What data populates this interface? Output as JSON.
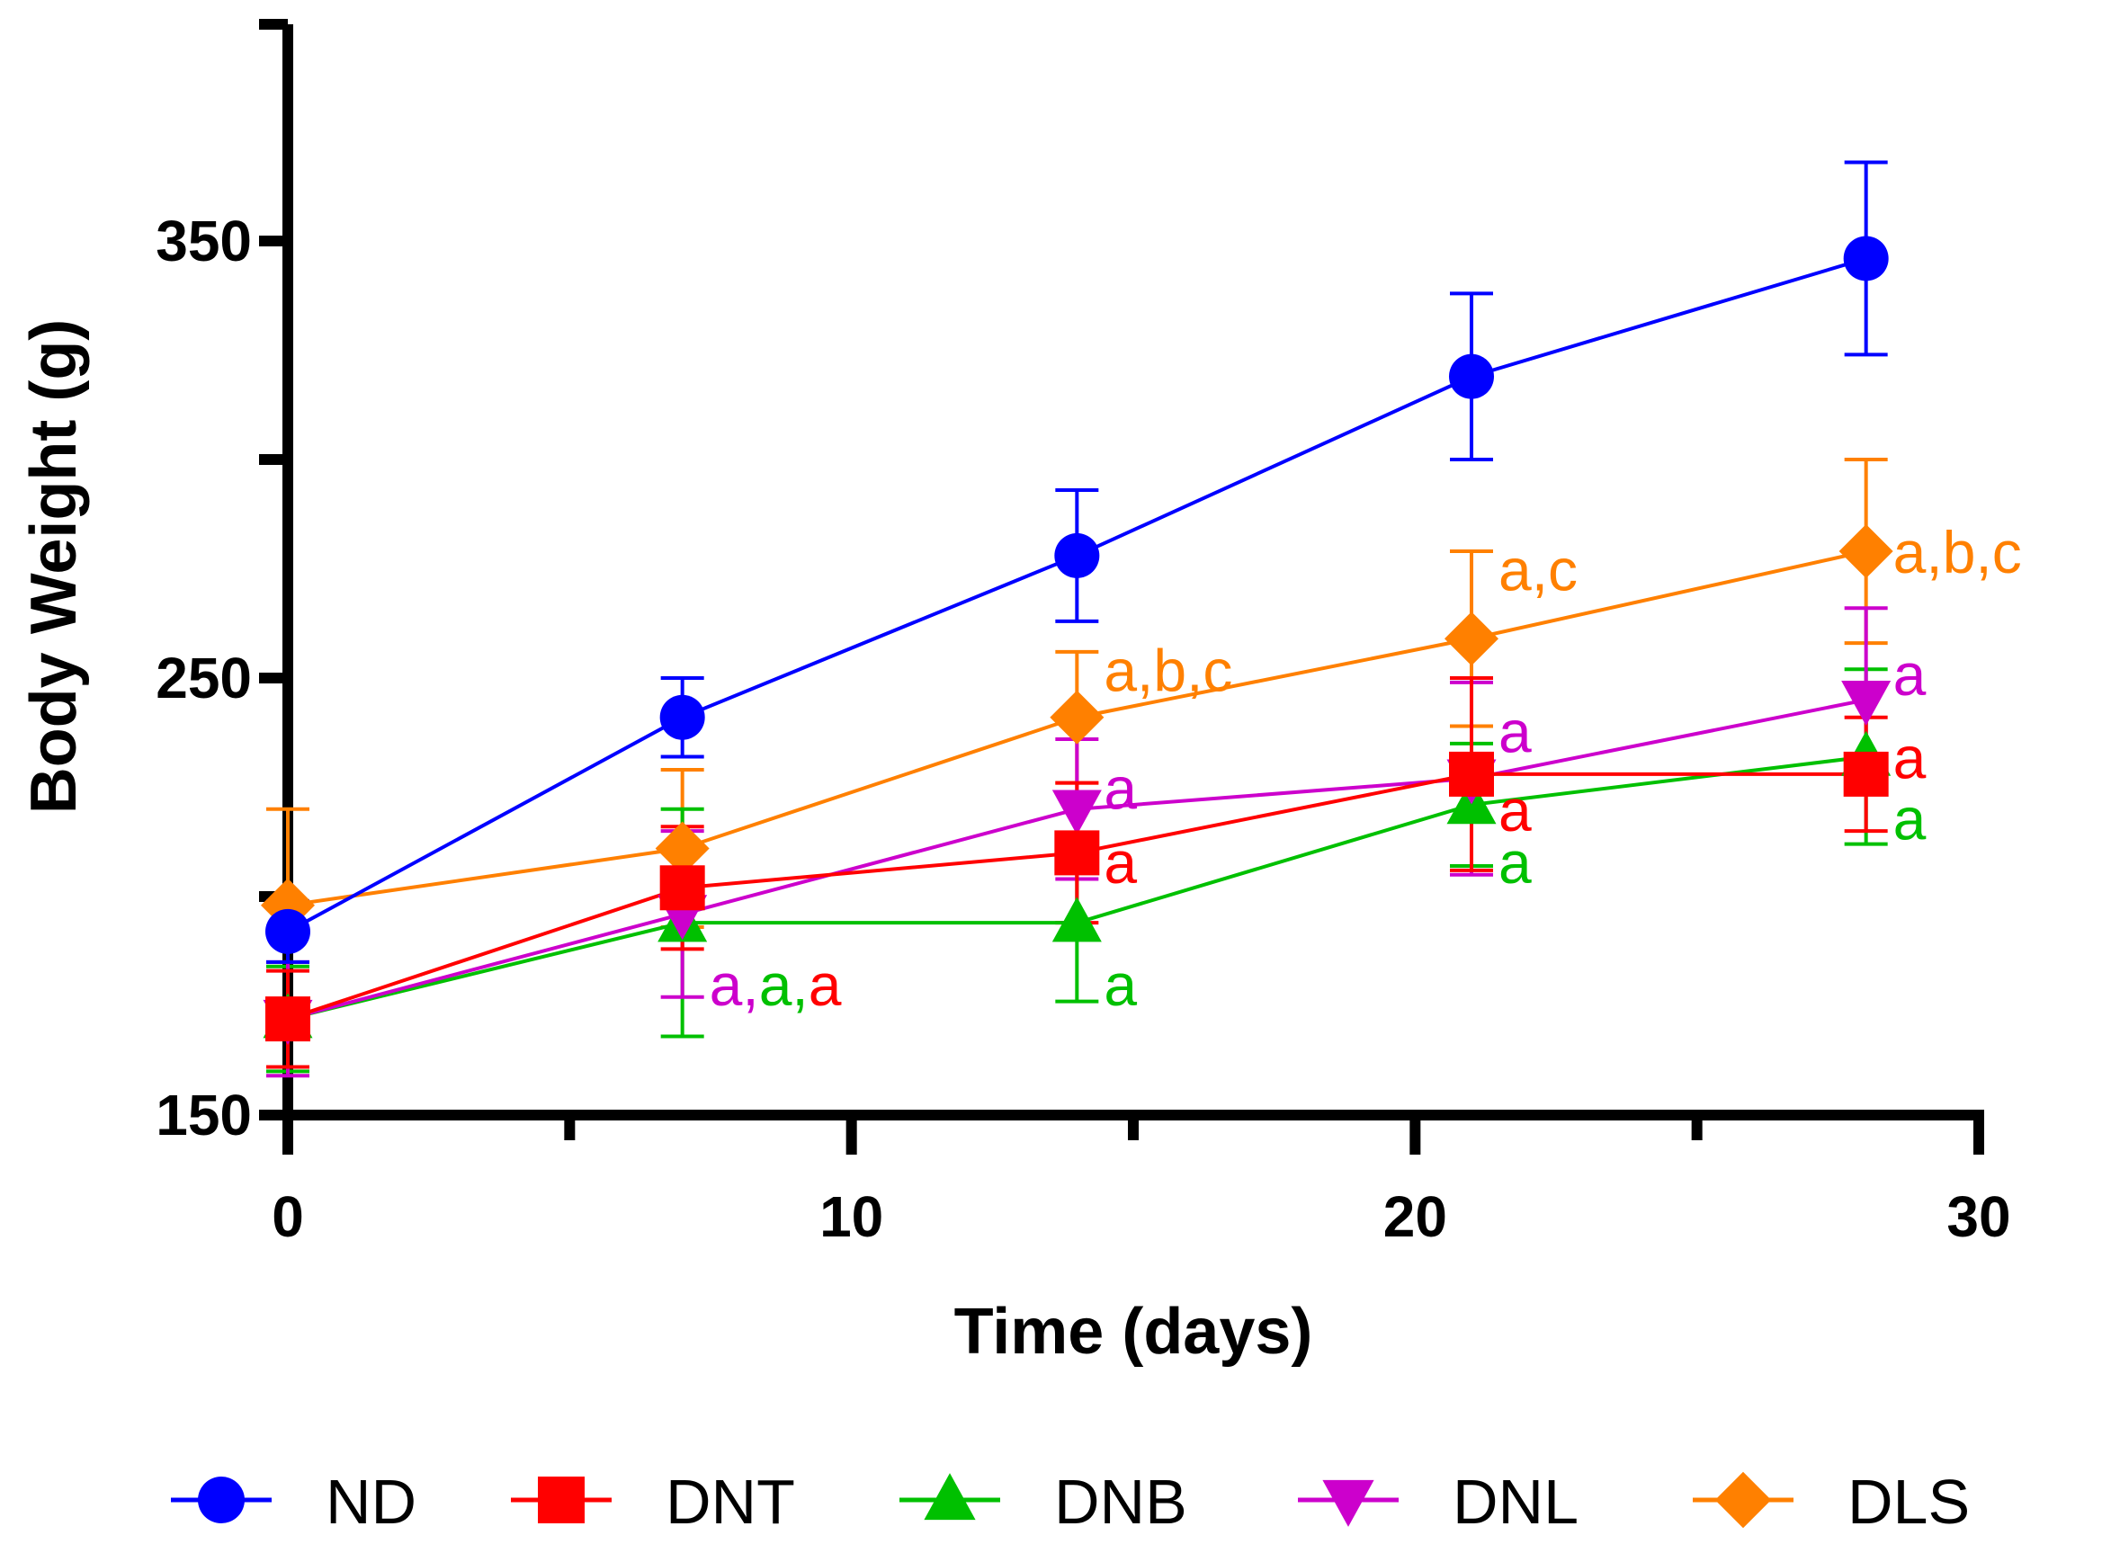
{
  "chart_data": {
    "type": "line",
    "title": "",
    "xlabel": "Time (days)",
    "ylabel": "Body Weight (g)",
    "xlim": [
      0,
      30
    ],
    "ylim": [
      150,
      400
    ],
    "x_ticks": [
      0,
      10,
      20,
      30
    ],
    "y_ticks": [
      150,
      250,
      350
    ],
    "legend_position": "bottom",
    "x": [
      0,
      7,
      14,
      21,
      28
    ],
    "series": [
      {
        "name": "ND",
        "color": "#0000ff",
        "marker": "circle",
        "values": [
          192,
          241,
          278,
          319,
          346
        ],
        "errors": [
          7,
          9,
          15,
          19,
          22
        ]
      },
      {
        "name": "DNT",
        "color": "#ff0000",
        "marker": "square",
        "values": [
          172,
          202,
          210,
          228,
          228
        ],
        "errors": [
          11,
          14,
          16,
          22,
          13
        ]
      },
      {
        "name": "DNB",
        "color": "#00c000",
        "marker": "triangle-up",
        "values": [
          172,
          194,
          194,
          221,
          232
        ],
        "errors": [
          12,
          26,
          18,
          14,
          20
        ]
      },
      {
        "name": "DNL",
        "color": "#cc00cc",
        "marker": "triangle-down",
        "values": [
          172,
          196,
          220,
          227,
          245
        ],
        "errors": [
          13,
          19,
          16,
          22,
          21
        ]
      },
      {
        "name": "DLS",
        "color": "#ff8000",
        "marker": "diamond",
        "values": [
          198,
          211,
          241,
          259,
          279
        ],
        "errors": [
          22,
          18,
          15,
          20,
          21
        ]
      }
    ],
    "annotations": [
      {
        "x": 7,
        "parts": [
          {
            "text": "a,",
            "series": "DNL"
          },
          {
            "text": "a,",
            "series": "DNB"
          },
          {
            "text": "a",
            "series": "DNT"
          }
        ],
        "y": 180
      },
      {
        "x": 14,
        "parts": [
          {
            "text": "a,b,c",
            "series": "DLS"
          }
        ],
        "y": 252
      },
      {
        "x": 14,
        "parts": [
          {
            "text": "a",
            "series": "DNL"
          }
        ],
        "y": 225
      },
      {
        "x": 14,
        "parts": [
          {
            "text": "a",
            "series": "DNT"
          }
        ],
        "y": 208
      },
      {
        "x": 14,
        "parts": [
          {
            "text": "a",
            "series": "DNB"
          }
        ],
        "y": 180
      },
      {
        "x": 21,
        "parts": [
          {
            "text": "a,c",
            "series": "DLS"
          }
        ],
        "y": 275
      },
      {
        "x": 21,
        "parts": [
          {
            "text": "a",
            "series": "DNL"
          }
        ],
        "y": 238
      },
      {
        "x": 21,
        "parts": [
          {
            "text": "a",
            "series": "DNT"
          }
        ],
        "y": 220
      },
      {
        "x": 21,
        "parts": [
          {
            "text": "a",
            "series": "DNB"
          }
        ],
        "y": 208
      },
      {
        "x": 28,
        "parts": [
          {
            "text": "a,b,c",
            "series": "DLS"
          }
        ],
        "y": 279
      },
      {
        "x": 28,
        "parts": [
          {
            "text": "a",
            "series": "DNL"
          }
        ],
        "y": 251
      },
      {
        "x": 28,
        "parts": [
          {
            "text": "a",
            "series": "DNT"
          }
        ],
        "y": 232
      },
      {
        "x": 28,
        "parts": [
          {
            "text": "a",
            "series": "DNB"
          }
        ],
        "y": 218
      }
    ]
  }
}
